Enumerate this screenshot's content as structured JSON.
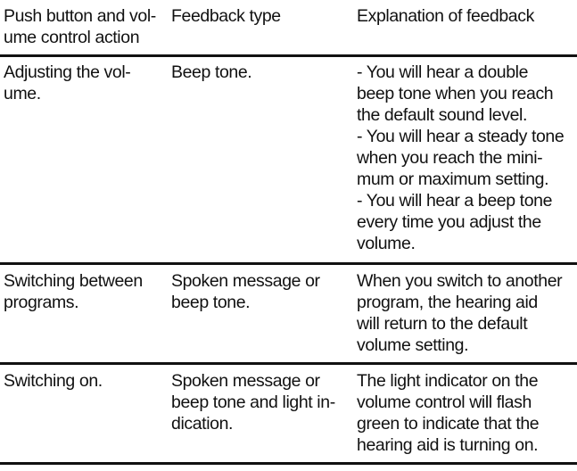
{
  "header": {
    "col1": "Push button and vol-\nume control action",
    "col2": "Feedback type",
    "col3": "Explanation of feedback"
  },
  "rows": [
    {
      "action": "Adjusting the vol-\nume.",
      "feedback": "Beep tone.",
      "explanation": "- You will hear a double\nbeep tone when you reach\nthe default sound level.\n- You will hear a steady tone\nwhen you reach the mini-\nmum or maximum setting.\n- You will hear a beep tone\nevery time you adjust the\nvolume."
    },
    {
      "action": "Switching between\nprograms.",
      "feedback": "Spoken message or\nbeep tone.",
      "explanation": "When you switch to another\nprogram, the hearing aid\nwill return to the default\nvolume setting."
    },
    {
      "action": "Switching on.",
      "feedback": "Spoken message or\nbeep tone and light in-\ndication.",
      "explanation": "The light indicator on the\nvolume control will flash\ngreen to indicate that the\nhearing aid is turning on."
    }
  ]
}
